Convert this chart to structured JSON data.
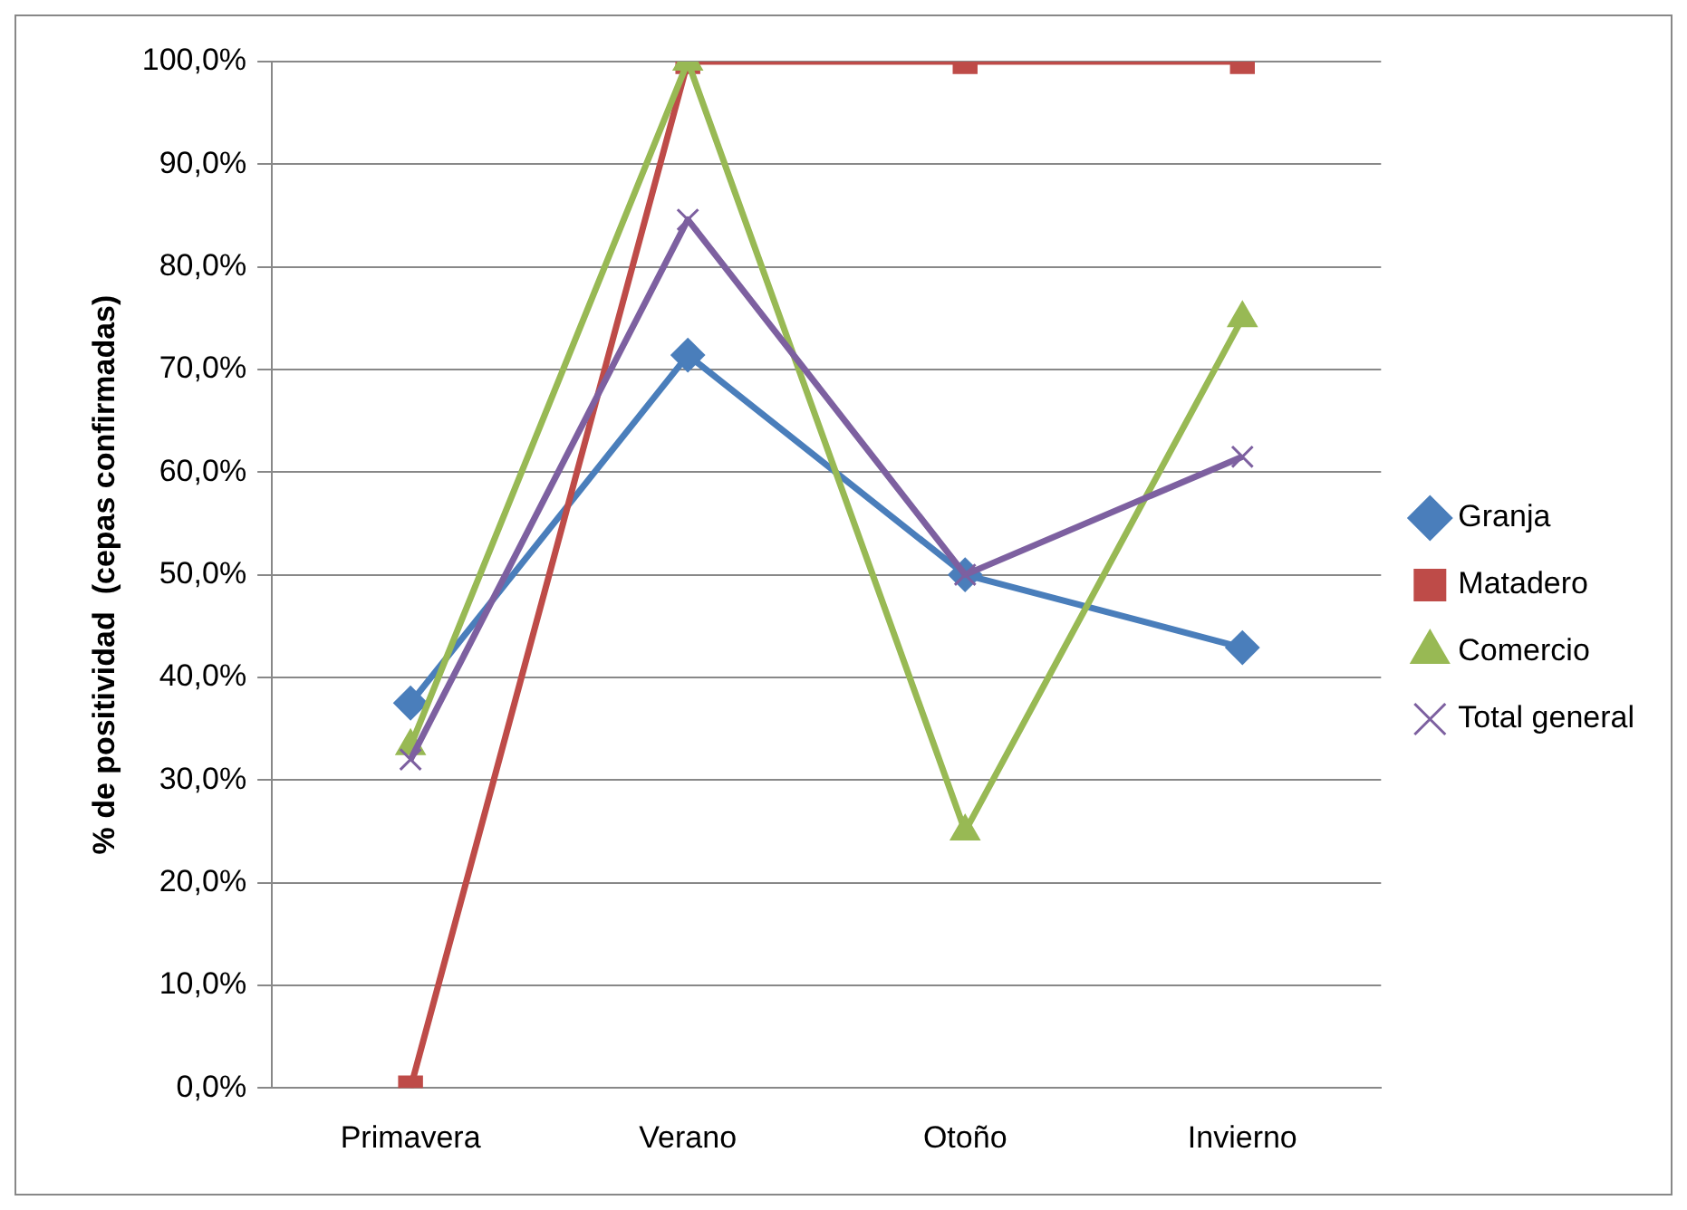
{
  "chart_data": {
    "type": "line",
    "ylabel": "% de positividad  (cepas confirmadas)",
    "categories": [
      "Primavera",
      "Verano",
      "Otoño",
      "Invierno"
    ],
    "series": [
      {
        "name": "Granja",
        "color": "#4a7ebb",
        "marker": "diamond",
        "values": [
          37.5,
          71.4,
          50,
          42.9
        ]
      },
      {
        "name": "Matadero",
        "color": "#be4b48",
        "marker": "square",
        "values": [
          0,
          100,
          100,
          100
        ]
      },
      {
        "name": "Comercio",
        "color": "#98b954",
        "marker": "triangle",
        "values": [
          33.3,
          100,
          25,
          75
        ]
      },
      {
        "name": "Total general",
        "color": "#7d60a0",
        "marker": "cross",
        "values": [
          32,
          84.6,
          50,
          61.5
        ]
      }
    ],
    "ylim": [
      0,
      100
    ],
    "yticks": [
      {
        "value": 0,
        "label": "0,0%"
      },
      {
        "value": 10,
        "label": "10,0%"
      },
      {
        "value": 20,
        "label": "20,0%"
      },
      {
        "value": 30,
        "label": "30,0%"
      },
      {
        "value": 40,
        "label": "40,0%"
      },
      {
        "value": 50,
        "label": "50,0%"
      },
      {
        "value": 60,
        "label": "60,0%"
      },
      {
        "value": 70,
        "label": "70,0%"
      },
      {
        "value": 80,
        "label": "80,0%"
      },
      {
        "value": 90,
        "label": "90,0%"
      },
      {
        "value": 100,
        "label": "100,0%"
      }
    ],
    "grid": "y",
    "legend": "right",
    "line_style": "solid"
  }
}
